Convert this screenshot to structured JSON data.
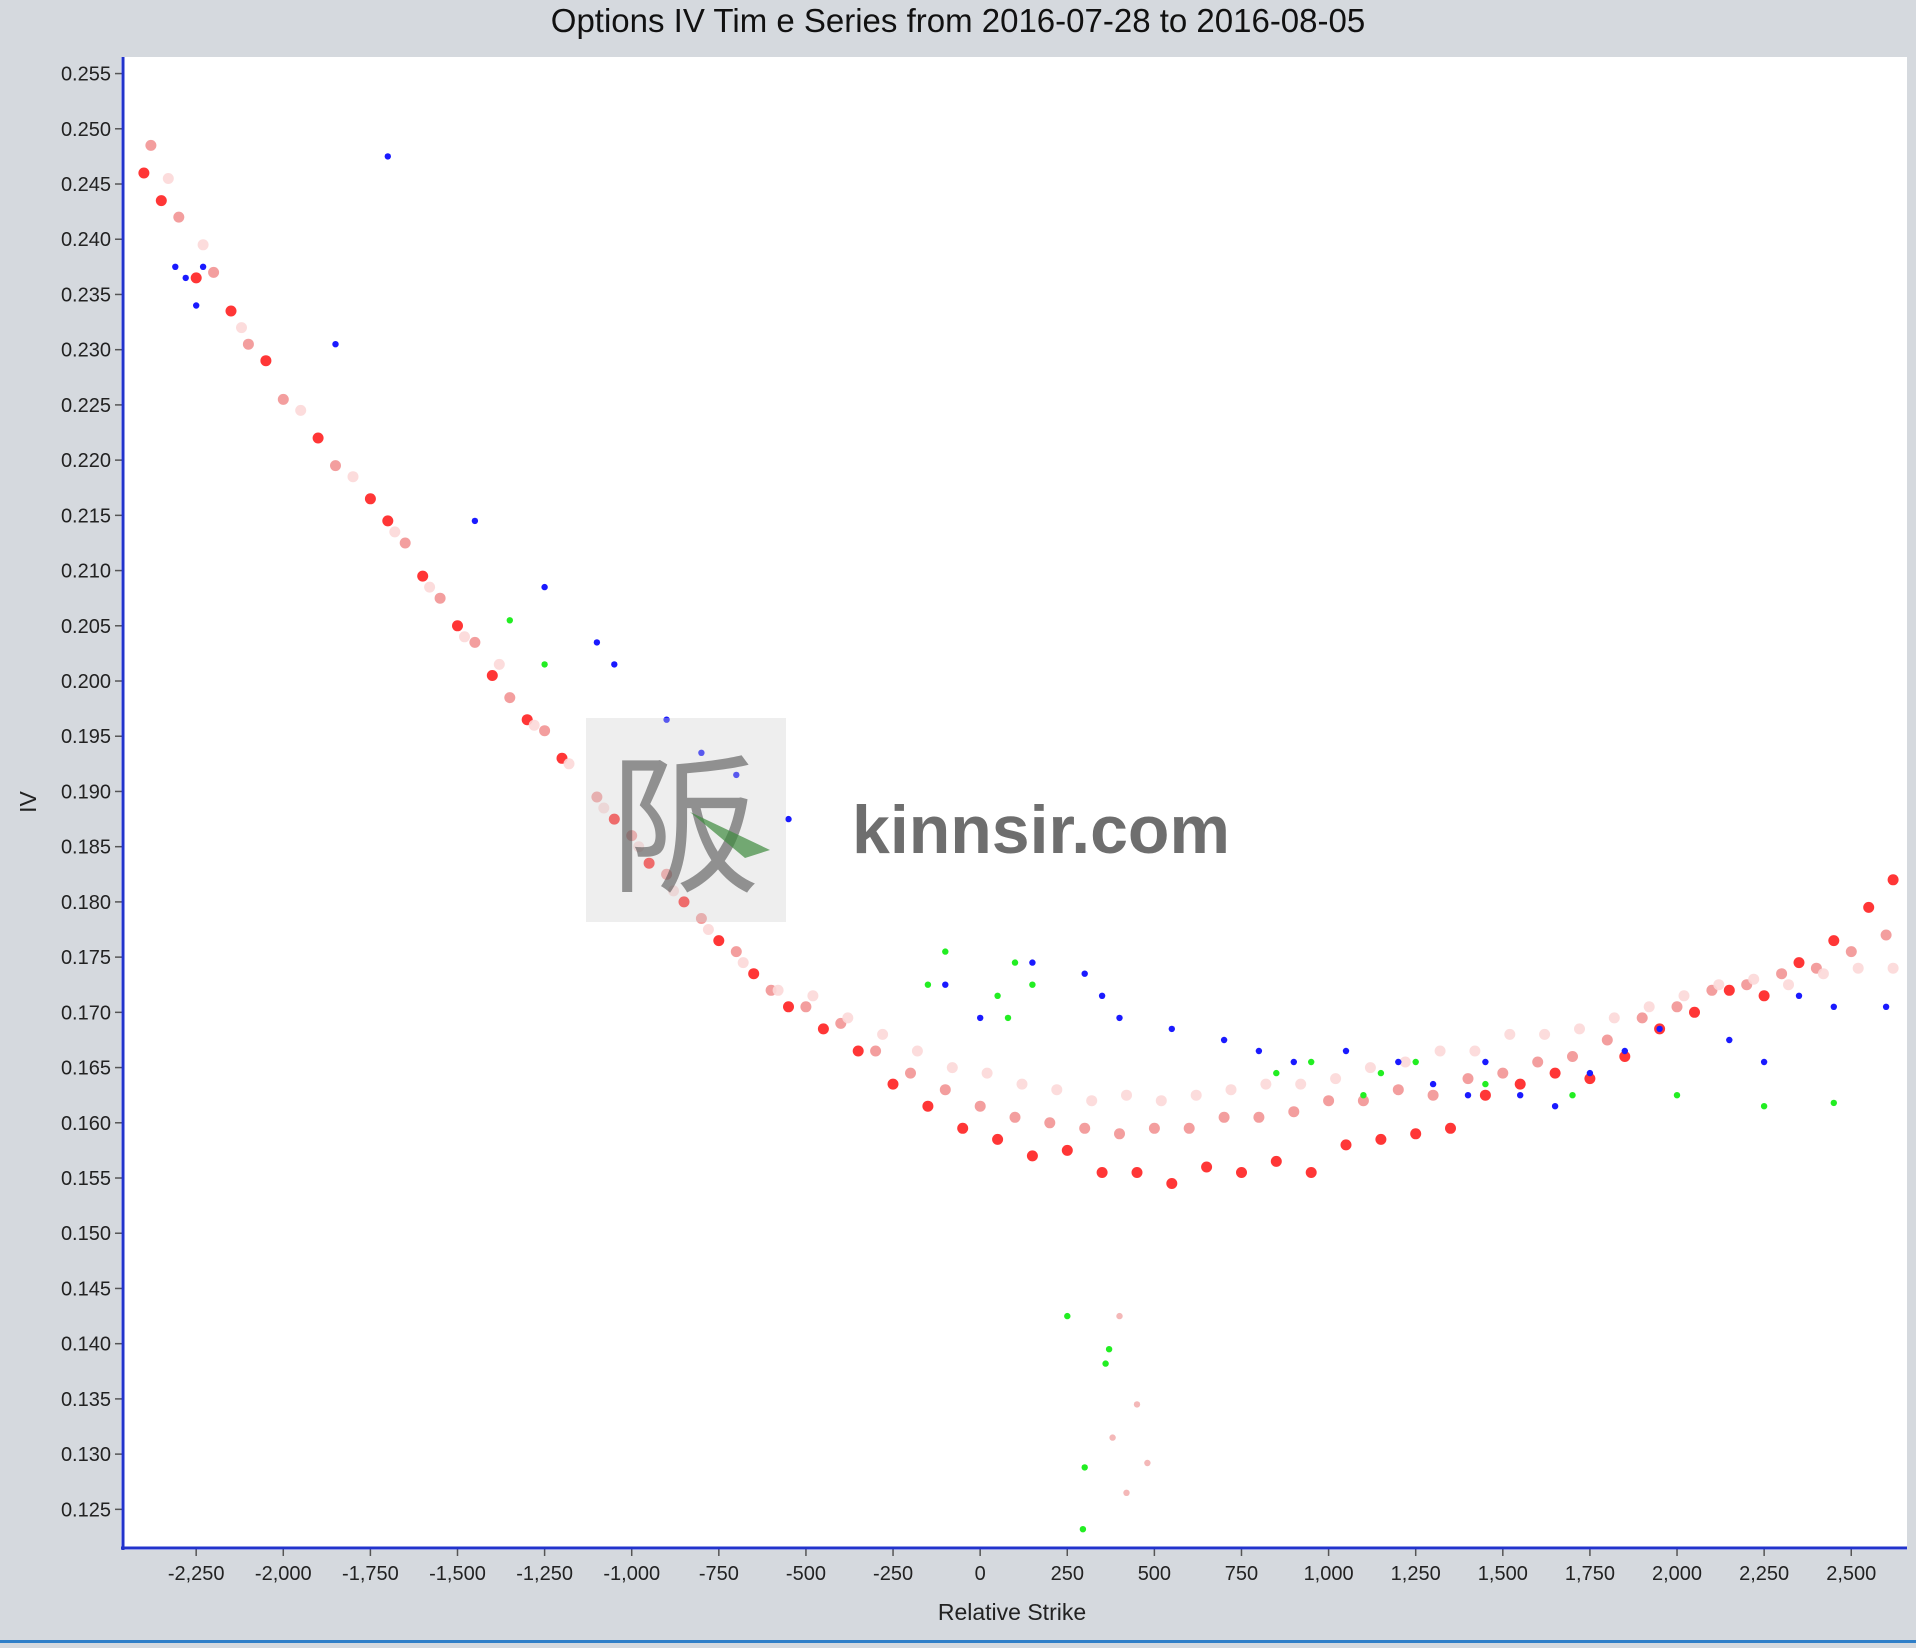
{
  "chart_data": {
    "type": "scatter",
    "title": "Options IV Tim e Series from  2016-07-28 to 2016-08-05",
    "xlabel": "Relative Strike",
    "ylabel": "IV",
    "xlim": [
      -2460,
      2660
    ],
    "ylim": [
      0.1215,
      0.2565
    ],
    "xticks": [
      -2250,
      -2000,
      -1750,
      -1500,
      -1250,
      -1000,
      -750,
      -500,
      -250,
      0,
      250,
      500,
      750,
      1000,
      1250,
      1500,
      1750,
      2000,
      2250,
      2500
    ],
    "xtick_labels": [
      "-2,250",
      "-2,000",
      "-1,750",
      "-1,500",
      "-1,250",
      "-1,000",
      "-750",
      "-500",
      "-250",
      "0",
      "250",
      "500",
      "750",
      "1,000",
      "1,250",
      "1,500",
      "1,750",
      "2,000",
      "2,250",
      "2,500"
    ],
    "yticks": [
      0.125,
      0.13,
      0.135,
      0.14,
      0.145,
      0.15,
      0.155,
      0.16,
      0.165,
      0.17,
      0.175,
      0.18,
      0.185,
      0.19,
      0.195,
      0.2,
      0.205,
      0.21,
      0.215,
      0.22,
      0.225,
      0.23,
      0.235,
      0.24,
      0.245,
      0.25,
      0.255
    ],
    "ytick_labels": [
      "0.125",
      "0.130",
      "0.135",
      "0.140",
      "0.145",
      "0.150",
      "0.155",
      "0.160",
      "0.165",
      "0.170",
      "0.175",
      "0.180",
      "0.185",
      "0.190",
      "0.195",
      "0.200",
      "0.205",
      "0.210",
      "0.215",
      "0.220",
      "0.225",
      "0.230",
      "0.235",
      "0.240",
      "0.245",
      "0.250",
      "0.255"
    ],
    "grid": false,
    "legend": "none",
    "series": [
      {
        "color": "#ff2020",
        "points": [
          [
            -2400,
            0.246
          ],
          [
            -2350,
            0.2435
          ],
          [
            -2250,
            0.2365
          ],
          [
            -2150,
            0.2335
          ],
          [
            -2050,
            0.229
          ],
          [
            -1900,
            0.222
          ],
          [
            -1750,
            0.2165
          ],
          [
            -1700,
            0.2145
          ],
          [
            -1600,
            0.2095
          ],
          [
            -1500,
            0.205
          ],
          [
            -1400,
            0.2005
          ],
          [
            -1300,
            0.1965
          ],
          [
            -1200,
            0.193
          ],
          [
            -1050,
            0.1875
          ],
          [
            -950,
            0.1835
          ],
          [
            -850,
            0.18
          ],
          [
            -750,
            0.1765
          ],
          [
            -650,
            0.1735
          ],
          [
            -550,
            0.1705
          ],
          [
            -450,
            0.1685
          ],
          [
            -350,
            0.1665
          ],
          [
            -250,
            0.1635
          ],
          [
            -150,
            0.1615
          ],
          [
            -50,
            0.1595
          ],
          [
            50,
            0.1585
          ],
          [
            150,
            0.157
          ],
          [
            250,
            0.1575
          ],
          [
            350,
            0.1555
          ],
          [
            450,
            0.1555
          ],
          [
            550,
            0.1545
          ],
          [
            650,
            0.156
          ],
          [
            750,
            0.1555
          ],
          [
            850,
            0.1565
          ],
          [
            950,
            0.1555
          ],
          [
            1050,
            0.158
          ],
          [
            1150,
            0.1585
          ],
          [
            1250,
            0.159
          ],
          [
            1350,
            0.1595
          ],
          [
            1450,
            0.1625
          ],
          [
            1550,
            0.1635
          ],
          [
            1650,
            0.1645
          ],
          [
            1750,
            0.164
          ],
          [
            1850,
            0.166
          ],
          [
            1950,
            0.1685
          ],
          [
            2050,
            0.17
          ],
          [
            2150,
            0.172
          ],
          [
            2250,
            0.1715
          ],
          [
            2350,
            0.1745
          ],
          [
            2450,
            0.1765
          ],
          [
            2550,
            0.1795
          ],
          [
            2620,
            0.182
          ]
        ]
      },
      {
        "color": "#f29494",
        "points": [
          [
            -2380,
            0.2485
          ],
          [
            -2300,
            0.242
          ],
          [
            -2200,
            0.237
          ],
          [
            -2100,
            0.2305
          ],
          [
            -2000,
            0.2255
          ],
          [
            -1850,
            0.2195
          ],
          [
            -1650,
            0.2125
          ],
          [
            -1550,
            0.2075
          ],
          [
            -1450,
            0.2035
          ],
          [
            -1350,
            0.1985
          ],
          [
            -1250,
            0.1955
          ],
          [
            -1100,
            0.1895
          ],
          [
            -1000,
            0.186
          ],
          [
            -900,
            0.1825
          ],
          [
            -800,
            0.1785
          ],
          [
            -700,
            0.1755
          ],
          [
            -600,
            0.172
          ],
          [
            -500,
            0.1705
          ],
          [
            -400,
            0.169
          ],
          [
            -300,
            0.1665
          ],
          [
            -200,
            0.1645
          ],
          [
            -100,
            0.163
          ],
          [
            0,
            0.1615
          ],
          [
            100,
            0.1605
          ],
          [
            200,
            0.16
          ],
          [
            300,
            0.1595
          ],
          [
            400,
            0.159
          ],
          [
            500,
            0.1595
          ],
          [
            600,
            0.1595
          ],
          [
            700,
            0.1605
          ],
          [
            800,
            0.1605
          ],
          [
            900,
            0.161
          ],
          [
            1000,
            0.162
          ],
          [
            1100,
            0.162
          ],
          [
            1200,
            0.163
          ],
          [
            1300,
            0.1625
          ],
          [
            1400,
            0.164
          ],
          [
            1500,
            0.1645
          ],
          [
            1600,
            0.1655
          ],
          [
            1700,
            0.166
          ],
          [
            1800,
            0.1675
          ],
          [
            1900,
            0.1695
          ],
          [
            2000,
            0.1705
          ],
          [
            2100,
            0.172
          ],
          [
            2200,
            0.1725
          ],
          [
            2300,
            0.1735
          ],
          [
            2400,
            0.174
          ],
          [
            2500,
            0.1755
          ],
          [
            2600,
            0.177
          ]
        ]
      },
      {
        "color": "#fcd8d8",
        "points": [
          [
            -2330,
            0.2455
          ],
          [
            -2230,
            0.2395
          ],
          [
            -2120,
            0.232
          ],
          [
            -1950,
            0.2245
          ],
          [
            -1800,
            0.2185
          ],
          [
            -1680,
            0.2135
          ],
          [
            -1580,
            0.2085
          ],
          [
            -1480,
            0.204
          ],
          [
            -1380,
            0.2015
          ],
          [
            -1280,
            0.196
          ],
          [
            -1180,
            0.1925
          ],
          [
            -1080,
            0.1885
          ],
          [
            -980,
            0.185
          ],
          [
            -880,
            0.181
          ],
          [
            -780,
            0.1775
          ],
          [
            -680,
            0.1745
          ],
          [
            -580,
            0.172
          ],
          [
            -480,
            0.1715
          ],
          [
            -380,
            0.1695
          ],
          [
            -280,
            0.168
          ],
          [
            -180,
            0.1665
          ],
          [
            -80,
            0.165
          ],
          [
            20,
            0.1645
          ],
          [
            120,
            0.1635
          ],
          [
            220,
            0.163
          ],
          [
            320,
            0.162
          ],
          [
            420,
            0.1625
          ],
          [
            520,
            0.162
          ],
          [
            620,
            0.1625
          ],
          [
            720,
            0.163
          ],
          [
            820,
            0.1635
          ],
          [
            920,
            0.1635
          ],
          [
            1020,
            0.164
          ],
          [
            1120,
            0.165
          ],
          [
            1220,
            0.1655
          ],
          [
            1320,
            0.1665
          ],
          [
            1420,
            0.1665
          ],
          [
            1520,
            0.168
          ],
          [
            1620,
            0.168
          ],
          [
            1720,
            0.1685
          ],
          [
            1820,
            0.1695
          ],
          [
            1920,
            0.1705
          ],
          [
            2020,
            0.1715
          ],
          [
            2120,
            0.1725
          ],
          [
            2220,
            0.173
          ],
          [
            2320,
            0.1725
          ],
          [
            2420,
            0.1735
          ],
          [
            2520,
            0.174
          ],
          [
            2620,
            0.174
          ]
        ]
      },
      {
        "color": "#1a1aff",
        "points": [
          [
            -2310,
            0.2375
          ],
          [
            -2280,
            0.2365
          ],
          [
            -2230,
            0.2375
          ],
          [
            -2250,
            0.234
          ],
          [
            -1700,
            0.2475
          ],
          [
            -1850,
            0.2305
          ],
          [
            -1450,
            0.2145
          ],
          [
            -1250,
            0.2085
          ],
          [
            -1100,
            0.2035
          ],
          [
            -1050,
            0.2015
          ],
          [
            -900,
            0.1965
          ],
          [
            -800,
            0.1935
          ],
          [
            -700,
            0.1915
          ],
          [
            -550,
            0.1875
          ],
          [
            -100,
            0.1725
          ],
          [
            0,
            0.1695
          ],
          [
            150,
            0.1745
          ],
          [
            300,
            0.1735
          ],
          [
            350,
            0.1715
          ],
          [
            400,
            0.1695
          ],
          [
            550,
            0.1685
          ],
          [
            700,
            0.1675
          ],
          [
            800,
            0.1665
          ],
          [
            900,
            0.1655
          ],
          [
            1050,
            0.1665
          ],
          [
            1200,
            0.1655
          ],
          [
            1300,
            0.1635
          ],
          [
            1400,
            0.1625
          ],
          [
            1450,
            0.1655
          ],
          [
            1550,
            0.1625
          ],
          [
            1650,
            0.1615
          ],
          [
            1750,
            0.1645
          ],
          [
            1850,
            0.1665
          ],
          [
            1950,
            0.1685
          ],
          [
            2150,
            0.1675
          ],
          [
            2250,
            0.1655
          ],
          [
            2350,
            0.1715
          ],
          [
            2450,
            0.1705
          ],
          [
            2600,
            0.1705
          ]
        ]
      },
      {
        "color": "#22ee22",
        "points": [
          [
            -1350,
            0.2055
          ],
          [
            -1250,
            0.2015
          ],
          [
            -150,
            0.1725
          ],
          [
            -100,
            0.1755
          ],
          [
            50,
            0.1715
          ],
          [
            80,
            0.1695
          ],
          [
            100,
            0.1745
          ],
          [
            150,
            0.1725
          ],
          [
            850,
            0.1645
          ],
          [
            950,
            0.1655
          ],
          [
            1100,
            0.1625
          ],
          [
            1150,
            0.1645
          ],
          [
            1250,
            0.1655
          ],
          [
            1450,
            0.1635
          ],
          [
            1700,
            0.1625
          ],
          [
            2000,
            0.1625
          ],
          [
            2250,
            0.1615
          ],
          [
            2450,
            0.1618
          ],
          [
            250,
            0.1425
          ],
          [
            370,
            0.1395
          ],
          [
            360,
            0.1382
          ],
          [
            300,
            0.1288
          ],
          [
            295,
            0.1232
          ]
        ]
      },
      {
        "color": "#f4b8b8",
        "points": [
          [
            400,
            0.1425
          ],
          [
            450,
            0.1345
          ],
          [
            480,
            0.1292
          ],
          [
            420,
            0.1265
          ],
          [
            380,
            0.1315
          ]
        ]
      }
    ]
  },
  "watermark": {
    "text": "kinnsir.com"
  }
}
